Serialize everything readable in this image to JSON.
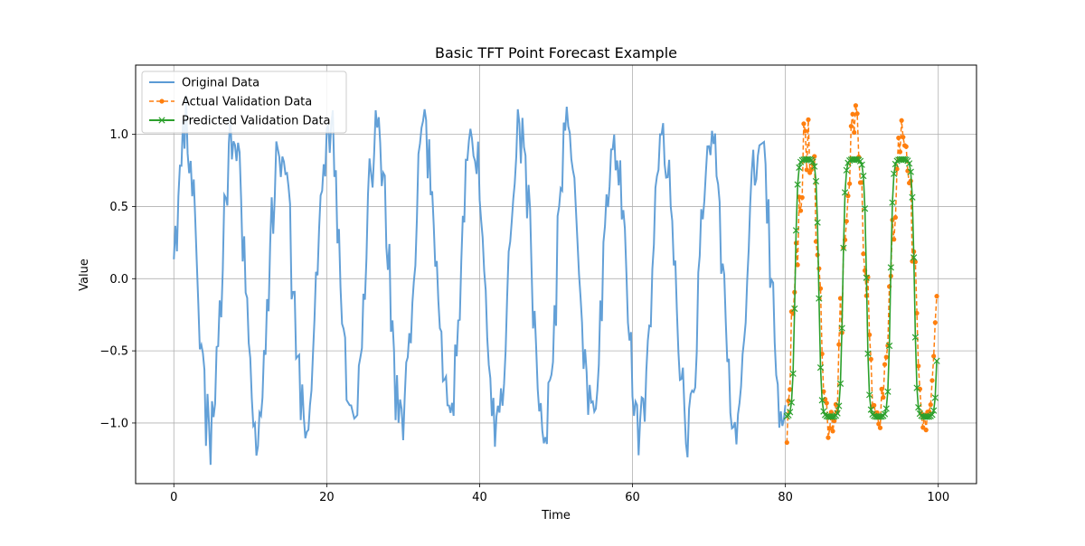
{
  "chart_data": {
    "type": "line",
    "title": "Basic TFT Point Forecast Example",
    "xlabel": "Time",
    "ylabel": "Value",
    "xlim": [
      -5,
      105
    ],
    "ylim": [
      -1.42,
      1.48
    ],
    "xticks": [
      0,
      20,
      40,
      60,
      80,
      100
    ],
    "yticks": [
      -1.0,
      -0.5,
      0.0,
      0.5,
      1.0
    ],
    "xtick_labels": [
      "0",
      "20",
      "40",
      "60",
      "80",
      "100"
    ],
    "ytick_labels": [
      "−1.0",
      "−0.5",
      "0.0",
      "0.5",
      "1.0"
    ],
    "grid": true,
    "legend_position": "top-left",
    "series_generation": {
      "period": 6.25,
      "x_start": 0,
      "step": 0.2,
      "noise_amplitude": 0.22,
      "original_end": 80,
      "validation_end": 99.8
    },
    "series": [
      {
        "name": "Original Data",
        "color": "#5b9bd5",
        "style": "solid",
        "marker": "none",
        "x_range": [
          0,
          80
        ],
        "description_values": {
          "amplitude": 1.0,
          "min_observed": -1.29,
          "max_observed": 1.34
        }
      },
      {
        "name": "Actual Validation Data",
        "color": "#ff7f0e",
        "style": "dashed",
        "marker": "dot",
        "x_range": [
          80.2,
          99.8
        ],
        "description_values": {
          "min_observed": -1.29,
          "max_observed": 1.21
        }
      },
      {
        "name": "Predicted Validation Data",
        "color": "#2ca02c",
        "style": "solid",
        "marker": "x",
        "x_range": [
          80.2,
          99.8
        ],
        "description_values": {
          "low_plateau": -0.96,
          "high_plateau": 0.83
        }
      }
    ]
  }
}
